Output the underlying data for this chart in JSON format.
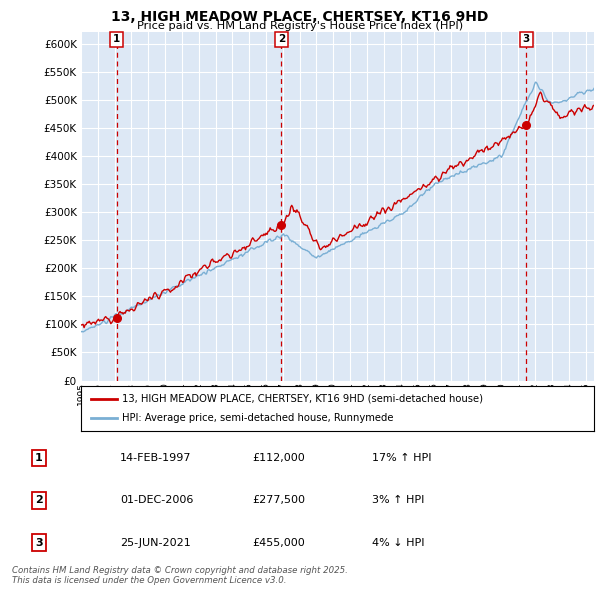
{
  "title": "13, HIGH MEADOW PLACE, CHERTSEY, KT16 9HD",
  "subtitle": "Price paid vs. HM Land Registry's House Price Index (HPI)",
  "plot_bg_color": "#dde8f5",
  "ylim": [
    0,
    620000
  ],
  "yticks": [
    0,
    50000,
    100000,
    150000,
    200000,
    250000,
    300000,
    350000,
    400000,
    450000,
    500000,
    550000,
    600000
  ],
  "transactions": [
    {
      "date_str": "14-FEB-1997",
      "date_num": 1997.12,
      "price": 112000,
      "label": "1",
      "hpi_pct": "17% ↑ HPI"
    },
    {
      "date_str": "01-DEC-2006",
      "date_num": 2006.92,
      "price": 277500,
      "label": "2",
      "hpi_pct": "3% ↑ HPI"
    },
    {
      "date_str": "25-JUN-2021",
      "date_num": 2021.48,
      "price": 455000,
      "label": "3",
      "hpi_pct": "4% ↓ HPI"
    }
  ],
  "legend_house": "13, HIGH MEADOW PLACE, CHERTSEY, KT16 9HD (semi-detached house)",
  "legend_hpi": "HPI: Average price, semi-detached house, Runnymede",
  "footer": "Contains HM Land Registry data © Crown copyright and database right 2025.\nThis data is licensed under the Open Government Licence v3.0.",
  "line_color_house": "#cc0000",
  "line_color_hpi": "#7aafd4",
  "vline_color": "#cc0000",
  "marker_color": "#cc0000",
  "box_color": "#cc0000",
  "xlim_start": 1995,
  "xlim_end": 2025.5
}
